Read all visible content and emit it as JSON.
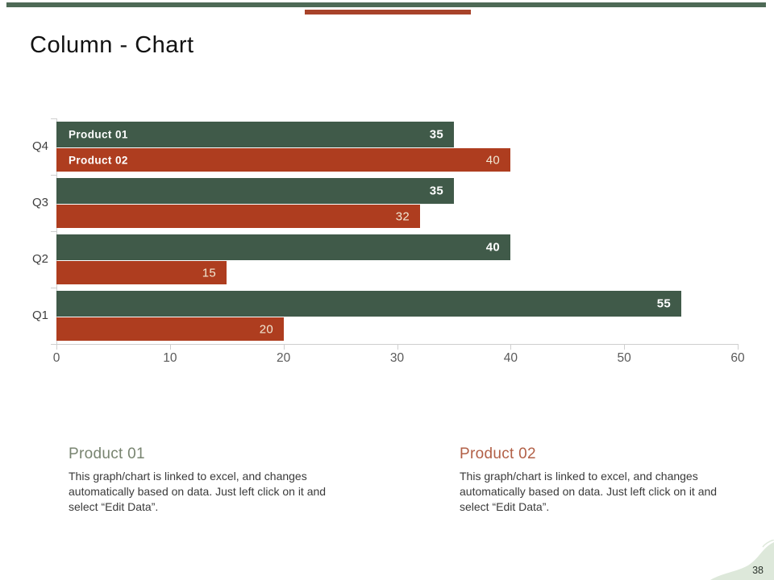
{
  "slide": {
    "title": "Column - Chart",
    "page_number": "38",
    "accent_colors": {
      "green": "#4e6a56",
      "red": "#a8432a",
      "page_wave": "#dde8da"
    }
  },
  "chart_data": {
    "type": "bar",
    "orientation": "horizontal",
    "title": "",
    "categories": [
      "Q4",
      "Q3",
      "Q2",
      "Q1"
    ],
    "series": [
      {
        "name": "Product 01",
        "color": "#405a49",
        "values": [
          35,
          35,
          40,
          55
        ],
        "value_label_color": "#ffffff",
        "value_label_bold": true
      },
      {
        "name": "Product 02",
        "color": "#ae3d1f",
        "values": [
          40,
          32,
          15,
          20
        ],
        "value_label_color": "#f1e8d4",
        "value_label_bold": false
      }
    ],
    "xlim": [
      0,
      60
    ],
    "x_ticks": [
      0,
      10,
      20,
      30,
      40,
      50,
      60
    ],
    "grid": false,
    "legend_position": "inside-first-group",
    "series_labels_shown_on_first_group": true
  },
  "footer": {
    "blocks": [
      {
        "heading": "Product 01",
        "heading_color": "#788470",
        "body": "This graph/chart is linked to excel, and changes automatically based on data. Just left click on it and select “Edit Data”."
      },
      {
        "heading": "Product 02",
        "heading_color": "#b26047",
        "body": "This graph/chart is linked to excel, and changes automatically based on data. Just left click on it and select “Edit Data”."
      }
    ]
  }
}
